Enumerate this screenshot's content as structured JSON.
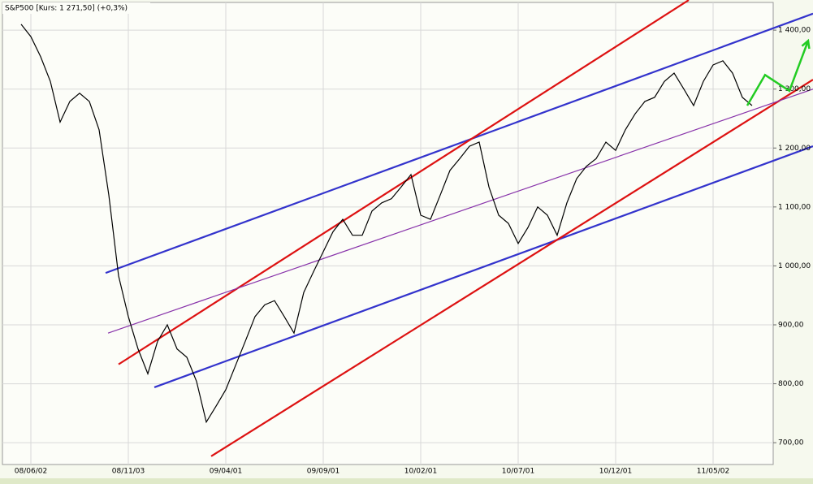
{
  "chart_data": {
    "type": "line",
    "title": "S&P500 [Kurs: 1 271,50] (+0,3%)",
    "categories": [
      null,
      "08/06/02",
      null,
      null,
      null,
      null,
      null,
      null,
      null,
      null,
      null,
      "08/11/03",
      null,
      null,
      null,
      null,
      null,
      null,
      null,
      null,
      null,
      "09/04/01",
      null,
      null,
      null,
      null,
      null,
      null,
      null,
      null,
      null,
      "09/09/01",
      null,
      null,
      null,
      null,
      null,
      null,
      null,
      null,
      null,
      "10/02/01",
      null,
      null,
      null,
      null,
      null,
      null,
      null,
      null,
      null,
      "10/07/01",
      null,
      null,
      null,
      null,
      null,
      null,
      null,
      null,
      null,
      "10/12/01",
      null,
      null,
      null,
      null,
      null,
      null,
      null,
      null,
      null,
      "11/05/02",
      null,
      null,
      null,
      null
    ],
    "series": [
      {
        "color": "#000000",
        "values": [
          1410,
          1389,
          1355,
          1313,
          1244,
          1279,
          1293,
          1279,
          1231,
          1120,
          983,
          914,
          859,
          817,
          872,
          900,
          859,
          845,
          804,
          735,
          762,
          790,
          831,
          872,
          914,
          934,
          941,
          914,
          886,
          955,
          990,
          1024,
          1058,
          1079,
          1052,
          1052,
          1093,
          1107,
          1114,
          1134,
          1155,
          1086,
          1079,
          1120,
          1162,
          1182,
          1203,
          1210,
          1134,
          1086,
          1072,
          1038,
          1065,
          1100,
          1086,
          1052,
          1107,
          1148,
          1169,
          1182,
          1210,
          1196,
          1231,
          1258,
          1279,
          1286,
          1313,
          1327,
          1300,
          1272,
          1313,
          1341,
          1348,
          1327,
          1286,
          1272
        ]
      }
    ],
    "trendlines": [
      {
        "color": "#3333cc",
        "x": [
          8.67,
          81.25
        ],
        "y": [
          988,
          1428
        ]
      },
      {
        "color": "#3333cc",
        "x": [
          13.67,
          81.25
        ],
        "y": [
          794,
          1203
        ]
      },
      {
        "color": "#dd1111",
        "x": [
          10,
          68.5
        ],
        "y": [
          833,
          1451
        ]
      },
      {
        "color": "#dd1111",
        "x": [
          19.5,
          81.25
        ],
        "y": [
          677,
          1316
        ]
      },
      {
        "color": "#8833aa",
        "x": [
          8.92,
          81.25
        ],
        "y": [
          886,
          1300
        ]
      }
    ],
    "projection": {
      "color": "#22cc22",
      "x": [
        74.5,
        76.33,
        78.83,
        80.75
      ],
      "y": [
        1272,
        1324,
        1297,
        1382
      ]
    },
    "ylim": [
      663,
      1447
    ],
    "yticks": [
      {
        "value": 700,
        "label": "700,00"
      },
      {
        "value": 800,
        "label": "800,00"
      },
      {
        "value": 900,
        "label": "900,00"
      },
      {
        "value": 1000,
        "label": "1 000,00"
      },
      {
        "value": 1100,
        "label": "1 100,00"
      },
      {
        "value": 1200,
        "label": "1 200,00"
      },
      {
        "value": 1300,
        "label": "1 300,00"
      },
      {
        "value": 1400,
        "label": "1 400,00"
      }
    ],
    "grid": true
  }
}
